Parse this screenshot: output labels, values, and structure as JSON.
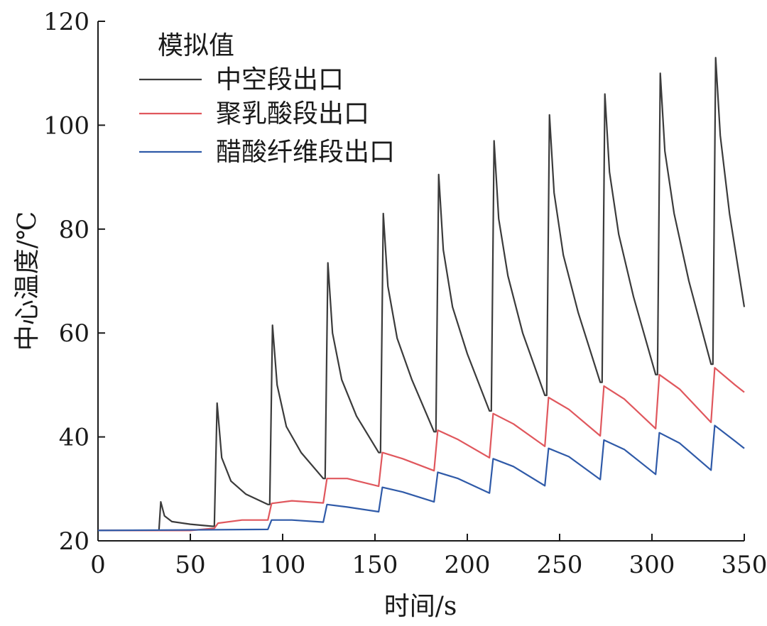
{
  "chart_data": {
    "type": "line",
    "title": "",
    "xlabel": "时间/s",
    "ylabel": "中心温度/℃",
    "xlim": [
      0,
      350
    ],
    "ylim": [
      20,
      120
    ],
    "xticks": [
      0,
      50,
      100,
      150,
      200,
      250,
      300,
      350
    ],
    "yticks": [
      20,
      40,
      60,
      80,
      100,
      120
    ],
    "grid": false,
    "legend": {
      "title": "模拟值",
      "position": "top-left",
      "items": [
        "中空段出口",
        "聚乳酸段出口",
        "醋酸纤维段出口"
      ]
    },
    "series": [
      {
        "name": "中空段出口",
        "color": "#3b3b3b",
        "points": [
          [
            0,
            22
          ],
          [
            33,
            22
          ],
          [
            34,
            27.5
          ],
          [
            36,
            24.8
          ],
          [
            40,
            23.7
          ],
          [
            50,
            23.2
          ],
          [
            62,
            22.8
          ],
          [
            63,
            22.8
          ],
          [
            64.5,
            46.5
          ],
          [
            67,
            36
          ],
          [
            72,
            31.5
          ],
          [
            80,
            29
          ],
          [
            92,
            27
          ],
          [
            93,
            27
          ],
          [
            94.5,
            61.5
          ],
          [
            97,
            50
          ],
          [
            102,
            42
          ],
          [
            110,
            37
          ],
          [
            122,
            32
          ],
          [
            123,
            32
          ],
          [
            124.5,
            73.5
          ],
          [
            127,
            60
          ],
          [
            132,
            51
          ],
          [
            140,
            44
          ],
          [
            152,
            37
          ],
          [
            153,
            37
          ],
          [
            154.5,
            83
          ],
          [
            157,
            69
          ],
          [
            162,
            59
          ],
          [
            170,
            51
          ],
          [
            182,
            41
          ],
          [
            183,
            41
          ],
          [
            184.5,
            90.5
          ],
          [
            187,
            76
          ],
          [
            192,
            65
          ],
          [
            200,
            56
          ],
          [
            212,
            45
          ],
          [
            213,
            45
          ],
          [
            214.5,
            97
          ],
          [
            217,
            82
          ],
          [
            222,
            71
          ],
          [
            230,
            60
          ],
          [
            242,
            48
          ],
          [
            243,
            48
          ],
          [
            244.5,
            102
          ],
          [
            247,
            87
          ],
          [
            252,
            75
          ],
          [
            260,
            64
          ],
          [
            272,
            50.5
          ],
          [
            273,
            50.5
          ],
          [
            274.5,
            106
          ],
          [
            277,
            91
          ],
          [
            282,
            79
          ],
          [
            290,
            67
          ],
          [
            302,
            52
          ],
          [
            303,
            52
          ],
          [
            304.5,
            110
          ],
          [
            307,
            95
          ],
          [
            312,
            83
          ],
          [
            320,
            70
          ],
          [
            332,
            54
          ],
          [
            333,
            54
          ],
          [
            334.5,
            113
          ],
          [
            337,
            98
          ],
          [
            342,
            83
          ],
          [
            350,
            65
          ]
        ]
      },
      {
        "name": "聚乳酸段出口",
        "color": "#e0575d",
        "points": [
          [
            0,
            22
          ],
          [
            50,
            22
          ],
          [
            63,
            22.4
          ],
          [
            65,
            23.4
          ],
          [
            78,
            24
          ],
          [
            92,
            24
          ],
          [
            94,
            27.2
          ],
          [
            105,
            27.7
          ],
          [
            122,
            27.3
          ],
          [
            124,
            32
          ],
          [
            135,
            32
          ],
          [
            152,
            30.5
          ],
          [
            154,
            37
          ],
          [
            165,
            35.8
          ],
          [
            182,
            33.5
          ],
          [
            184,
            41.3
          ],
          [
            195,
            39.5
          ],
          [
            212,
            36
          ],
          [
            214,
            44.5
          ],
          [
            225,
            42.5
          ],
          [
            242,
            38.2
          ],
          [
            244,
            47.6
          ],
          [
            255,
            45.3
          ],
          [
            272,
            40.2
          ],
          [
            274,
            49.8
          ],
          [
            285,
            47.3
          ],
          [
            302,
            41.6
          ],
          [
            304,
            52
          ],
          [
            315,
            49.2
          ],
          [
            332,
            42.8
          ],
          [
            334,
            53.3
          ],
          [
            345,
            50
          ],
          [
            350,
            48.6
          ]
        ]
      },
      {
        "name": "醋酸纤维段出口",
        "color": "#2f5aa8",
        "points": [
          [
            0,
            22
          ],
          [
            92,
            22.2
          ],
          [
            94,
            24
          ],
          [
            105,
            24
          ],
          [
            122,
            23.6
          ],
          [
            124,
            27
          ],
          [
            135,
            26.5
          ],
          [
            152,
            25.6
          ],
          [
            154,
            30.3
          ],
          [
            165,
            29.4
          ],
          [
            182,
            27.5
          ],
          [
            184,
            33.2
          ],
          [
            195,
            32
          ],
          [
            212,
            29.2
          ],
          [
            214,
            35.8
          ],
          [
            225,
            34.3
          ],
          [
            242,
            30.6
          ],
          [
            244,
            37.8
          ],
          [
            255,
            36.2
          ],
          [
            272,
            31.8
          ],
          [
            274,
            39.4
          ],
          [
            285,
            37.6
          ],
          [
            302,
            32.8
          ],
          [
            304,
            40.8
          ],
          [
            315,
            38.8
          ],
          [
            332,
            33.6
          ],
          [
            334,
            42.2
          ],
          [
            345,
            39.2
          ],
          [
            350,
            37.8
          ]
        ]
      }
    ]
  }
}
